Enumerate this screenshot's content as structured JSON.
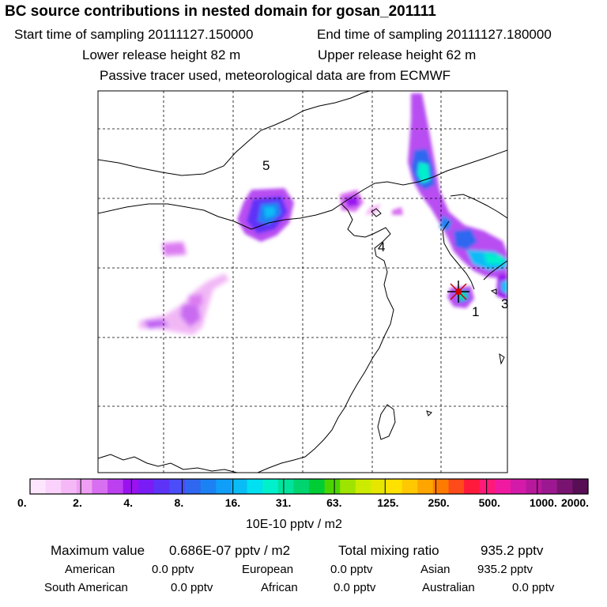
{
  "header": {
    "title": "BC  source contributions in nested domain for gosan_201111",
    "start_time_label": "Start time of sampling 20111127.150000",
    "end_time_label": "End time of sampling 20111127.180000",
    "lower_height_label": "Lower release height   82 m",
    "upper_height_label": "Upper release height   62 m",
    "tracer_note": "Passive tracer used, meteorological data are from ECMWF"
  },
  "map": {
    "region_labels": [
      "5",
      "4",
      "1",
      "3"
    ],
    "receptor_marker": "star-marker"
  },
  "legend": {
    "colors": [
      "#fde6fd",
      "#fbd2fb",
      "#f5b8f7",
      "#ee9ff3",
      "#d86ef0",
      "#bc3ff0",
      "#9a12f0",
      "#7a1cf5",
      "#5e33f8",
      "#4a4df8",
      "#2f67f0",
      "#1c82f4",
      "#0f9ef8",
      "#0abcf6",
      "#00e0f0",
      "#00f0cc",
      "#00e39d",
      "#00d46e",
      "#00cc33",
      "#4cd400",
      "#9ee400",
      "#cceb00",
      "#e6e600",
      "#ffe100",
      "#ffc800",
      "#ffa500",
      "#ff7a00",
      "#ff4a1a",
      "#ff1a3c",
      "#ff1a7a",
      "#f01aa0",
      "#d41aa8",
      "#b8189c",
      "#9c1890",
      "#781470",
      "#580e55"
    ],
    "ticks": [
      "0.",
      "2.",
      "4.",
      "8.",
      "16.",
      "31.",
      "63.",
      "125.",
      "250.",
      "500.",
      "1000.",
      "2000."
    ],
    "units": "10E-10 pptv / m2"
  },
  "stats": {
    "max_value_label": "Maximum value",
    "max_value": "0.686E-07 pptv / m2",
    "total_label": "Total mixing ratio",
    "total_value": "935.2 pptv",
    "regions": [
      {
        "name": "American",
        "value": "0.0 pptv"
      },
      {
        "name": "European",
        "value": "0.0 pptv"
      },
      {
        "name": "Asian",
        "value": "935.2 pptv"
      },
      {
        "name": "South American",
        "value": "0.0 pptv"
      },
      {
        "name": "African",
        "value": "0.0 pptv"
      },
      {
        "name": "Australian",
        "value": "0.0 pptv"
      }
    ]
  }
}
